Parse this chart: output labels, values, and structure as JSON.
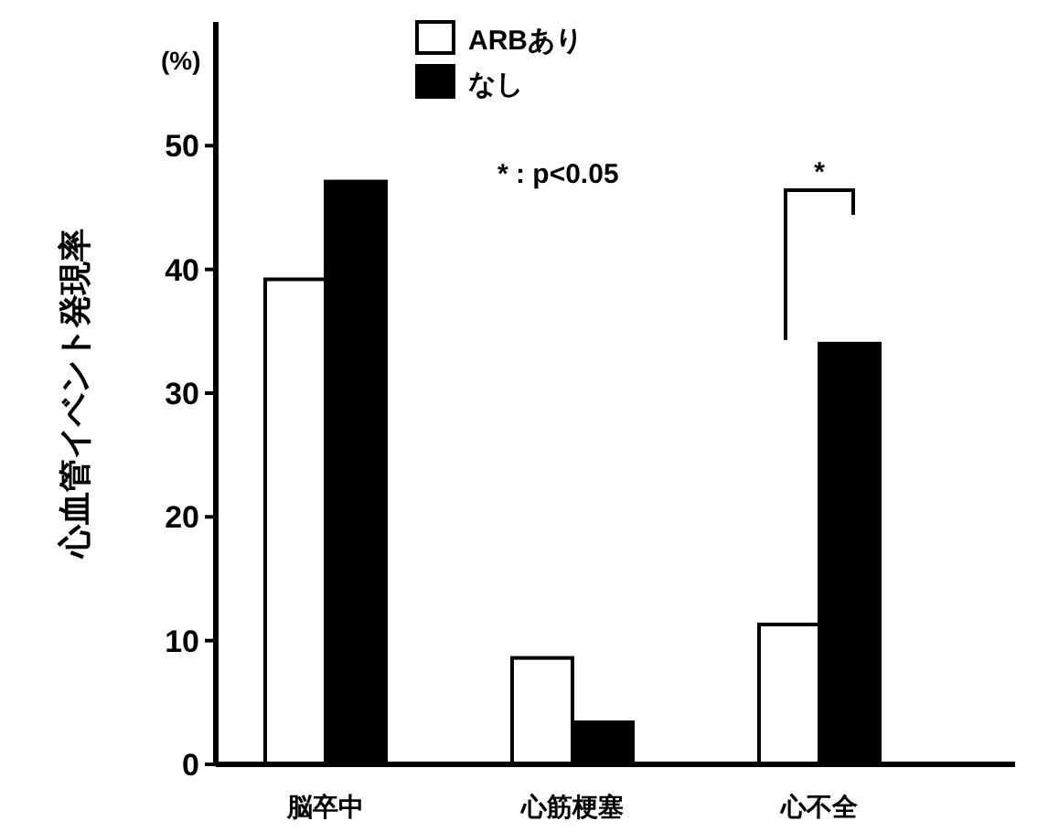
{
  "chart_data": {
    "type": "bar",
    "ylabel": "心血管イベント発現率",
    "categories": [
      "脳卒中",
      "心筋梗塞",
      "心不全"
    ],
    "series": [
      {
        "name": "ARBあり",
        "color": "#ffffff",
        "values": [
          39.2,
          8.6,
          11.3
        ]
      },
      {
        "name": "なし",
        "color": "#000000",
        "values": [
          47.1,
          3.4,
          34.0
        ]
      }
    ],
    "ylim": [
      0,
      60
    ],
    "yticks": [
      0,
      10,
      20,
      30,
      40,
      50
    ],
    "legend": "top",
    "grid": false,
    "annotations": [
      "(%)",
      "*  : p<0.05",
      "*"
    ]
  }
}
